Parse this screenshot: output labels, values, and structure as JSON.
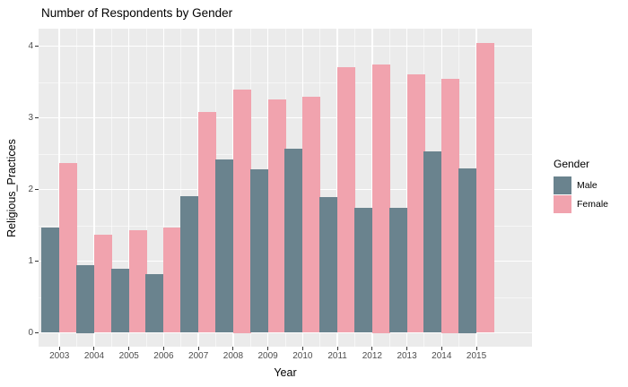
{
  "title": "Number of Respondents by Gender",
  "chart_data": {
    "type": "bar",
    "grouped": true,
    "title": "Number of Respondents by Gender",
    "xlabel": "Year",
    "ylabel": "Religious_Practices",
    "categories": [
      "2003",
      "2004",
      "2005",
      "2006",
      "2007",
      "2008",
      "2009",
      "2010",
      "2011",
      "2012",
      "2013",
      "2014",
      "2015"
    ],
    "series": [
      {
        "name": "Male",
        "color": "#6a838e",
        "values": [
          1.47,
          0.95,
          0.89,
          0.82,
          1.91,
          2.42,
          2.28,
          2.57,
          1.89,
          1.74,
          1.74,
          2.53,
          2.3
        ]
      },
      {
        "name": "Female",
        "color": "#f1a3ae",
        "values": [
          2.37,
          1.37,
          1.43,
          1.47,
          3.08,
          3.4,
          3.26,
          3.29,
          3.71,
          3.75,
          3.61,
          3.55,
          4.04
        ]
      }
    ],
    "ylim": [
      0,
      4.24
    ],
    "yticks": [
      0,
      1,
      2,
      3,
      4
    ],
    "yticks_minor": [
      0.5,
      1.5,
      2.5,
      3.5
    ],
    "grid": true,
    "panel_bg": "#ebebeb",
    "grid_color": "#ffffff",
    "tick_label_color": "#4d4d4d",
    "legend_title": "Gender",
    "legend_position": "right"
  }
}
